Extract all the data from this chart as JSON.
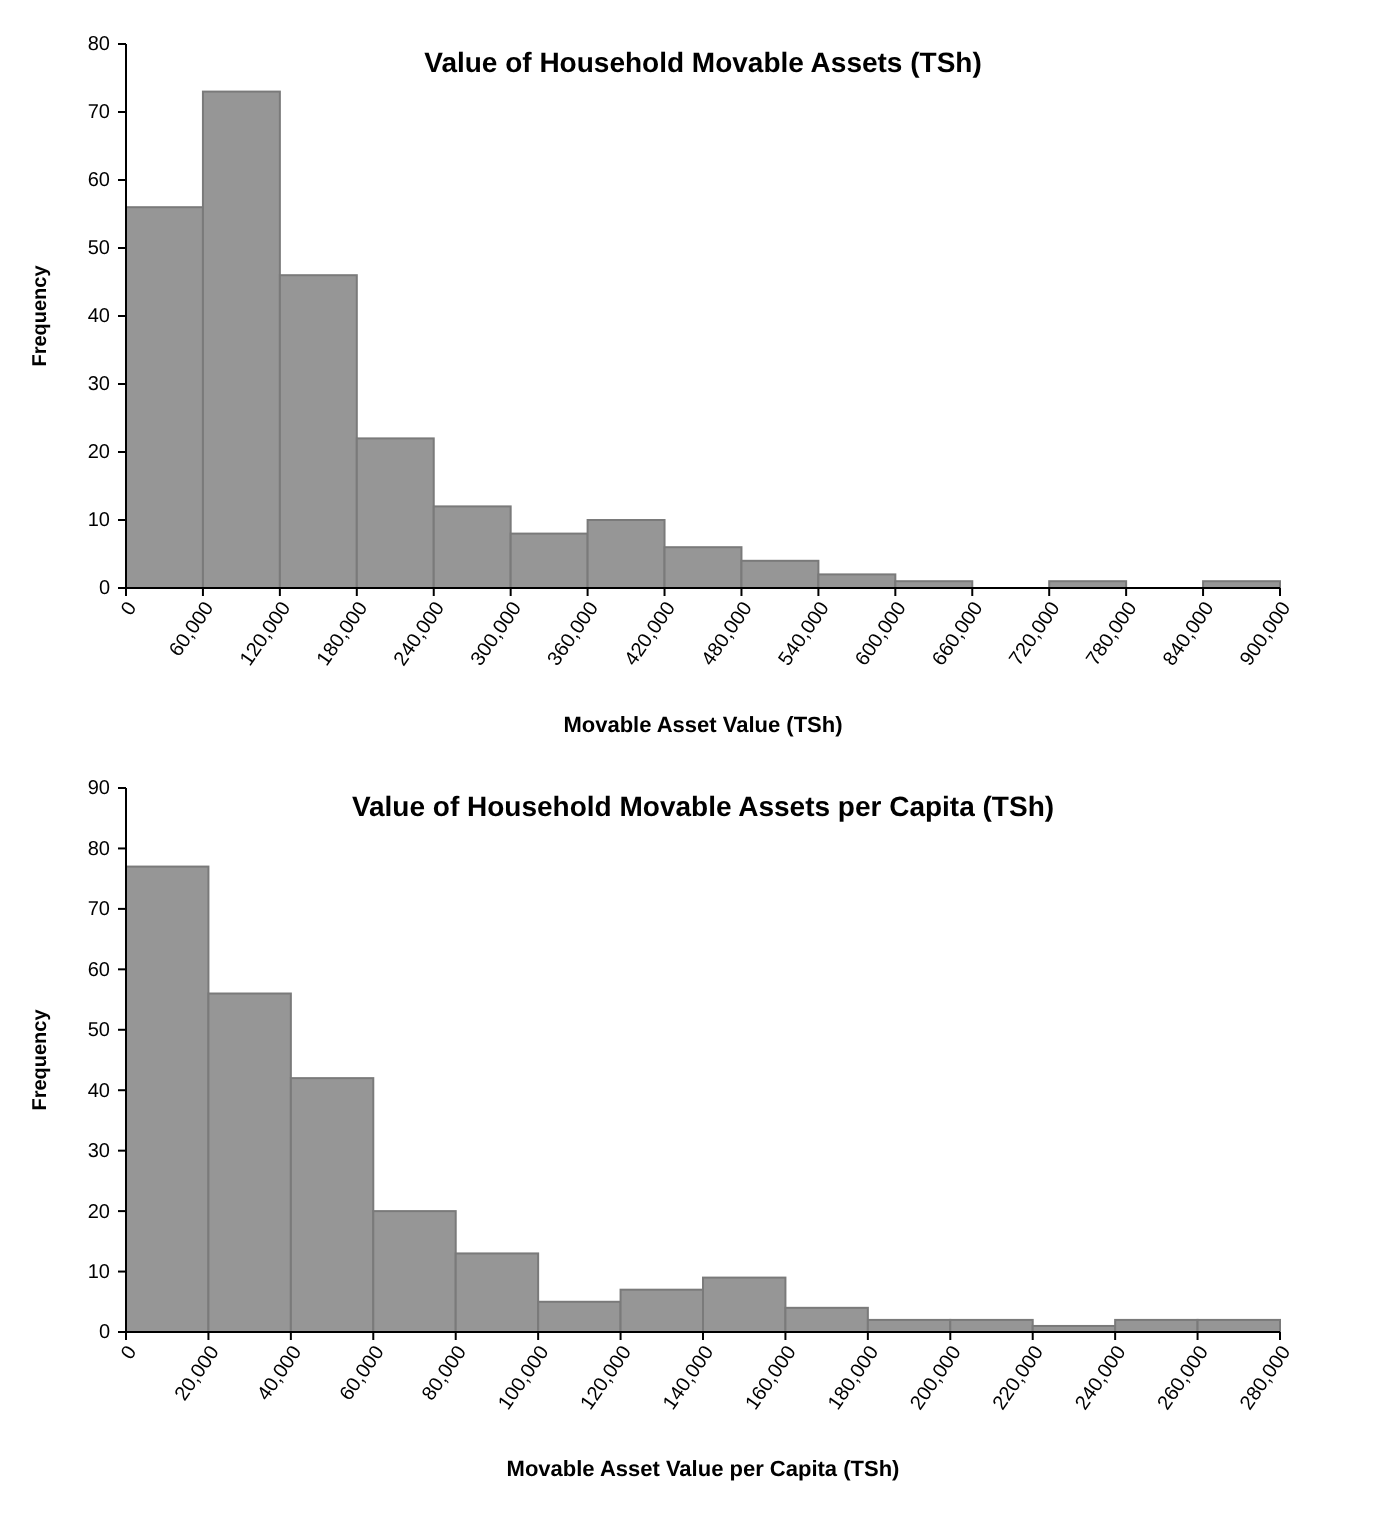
{
  "chart_data": [
    {
      "type": "histogram",
      "title": "Value of Household Movable Assets (TSh)",
      "xlabel": "Movable Asset Value (TSh)",
      "ylabel": "Frequency",
      "color": "#969696",
      "bins": [
        0,
        60000,
        120000,
        180000,
        240000,
        300000,
        360000,
        420000,
        480000,
        540000,
        600000,
        660000,
        720000,
        780000,
        840000,
        900000
      ],
      "values": [
        56,
        73,
        46,
        22,
        12,
        8,
        10,
        6,
        4,
        2,
        1,
        0,
        1,
        0,
        1
      ],
      "xlim": [
        0,
        900000
      ],
      "xticks": [
        {
          "value": 0,
          "label": "0"
        },
        {
          "value": 60000,
          "label": "60,000"
        },
        {
          "value": 120000,
          "label": "120,000"
        },
        {
          "value": 180000,
          "label": "180,000"
        },
        {
          "value": 240000,
          "label": "240,000"
        },
        {
          "value": 300000,
          "label": "300,000"
        },
        {
          "value": 360000,
          "label": "360,000"
        },
        {
          "value": 420000,
          "label": "420,000"
        },
        {
          "value": 480000,
          "label": "480,000"
        },
        {
          "value": 540000,
          "label": "540,000"
        },
        {
          "value": 600000,
          "label": "600,000"
        },
        {
          "value": 660000,
          "label": "660,000"
        },
        {
          "value": 720000,
          "label": "720,000"
        },
        {
          "value": 780000,
          "label": "780,000"
        },
        {
          "value": 840000,
          "label": "840,000"
        },
        {
          "value": 900000,
          "label": "900,000"
        }
      ],
      "ylim": [
        0,
        80
      ],
      "yticks": [
        0,
        10,
        20,
        30,
        40,
        50,
        60,
        70,
        80
      ],
      "grid": false
    },
    {
      "type": "histogram",
      "title": "Value of Household Movable Assets per Capita (TSh)",
      "xlabel": "Movable Asset Value per Capita (TSh)",
      "ylabel": "Frequency",
      "color": "#969696",
      "bins": [
        0,
        20000,
        40000,
        60000,
        80000,
        100000,
        120000,
        140000,
        160000,
        180000,
        200000,
        220000,
        240000,
        260000,
        280000
      ],
      "values": [
        77,
        56,
        42,
        20,
        13,
        5,
        7,
        9,
        4,
        2,
        2,
        1,
        2,
        2
      ],
      "xlim": [
        0,
        280000
      ],
      "xticks": [
        {
          "value": 0,
          "label": "0"
        },
        {
          "value": 20000,
          "label": "20,000"
        },
        {
          "value": 40000,
          "label": "40,000"
        },
        {
          "value": 60000,
          "label": "60,000"
        },
        {
          "value": 80000,
          "label": "80,000"
        },
        {
          "value": 100000,
          "label": "100,000"
        },
        {
          "value": 120000,
          "label": "120,000"
        },
        {
          "value": 140000,
          "label": "140,000"
        },
        {
          "value": 160000,
          "label": "160,000"
        },
        {
          "value": 180000,
          "label": "180,000"
        },
        {
          "value": 200000,
          "label": "200,000"
        },
        {
          "value": 220000,
          "label": "220,000"
        },
        {
          "value": 240000,
          "label": "240,000"
        },
        {
          "value": 260000,
          "label": "260,000"
        },
        {
          "value": 280000,
          "label": "280,000"
        }
      ],
      "ylim": [
        0,
        90
      ],
      "yticks": [
        0,
        10,
        20,
        30,
        40,
        50,
        60,
        70,
        80,
        90
      ],
      "grid": false
    }
  ]
}
